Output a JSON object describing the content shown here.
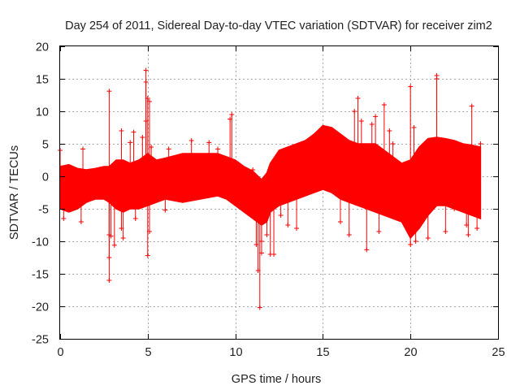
{
  "chart_data": {
    "type": "scatter",
    "title": "Day 254 of 2011, Sidereal Day-to-day VTEC variation (SDTVAR) for receiver zim2",
    "xlabel": "GPS time / hours",
    "ylabel": "SDTVAR / TECUs",
    "xlim": [
      0,
      25
    ],
    "ylim": [
      -25,
      20
    ],
    "xticks": [
      0,
      5,
      10,
      15,
      20,
      25
    ],
    "yticks": [
      -25,
      -20,
      -15,
      -10,
      -5,
      0,
      5,
      10,
      15,
      20
    ],
    "grid": true,
    "marker": "+",
    "color": "#ff0000",
    "series": [
      {
        "name": "SDTVAR",
        "envelope": {
          "x": [
            0.0,
            0.5,
            1.0,
            1.5,
            2.0,
            2.5,
            2.8,
            3.2,
            3.6,
            4.0,
            4.5,
            5.0,
            5.5,
            6.0,
            7.0,
            8.0,
            9.0,
            9.5,
            10.0,
            10.5,
            11.0,
            11.5,
            11.8,
            12.0,
            12.5,
            13.0,
            13.5,
            14.0,
            14.5,
            15.0,
            15.5,
            16.0,
            16.5,
            17.0,
            17.5,
            18.0,
            18.5,
            19.0,
            19.5,
            20.0,
            20.5,
            21.0,
            21.5,
            22.0,
            22.5,
            23.0,
            23.5,
            24.0
          ],
          "upper": [
            1.5,
            1.8,
            1.2,
            1.0,
            1.2,
            1.5,
            1.5,
            2.5,
            2.5,
            2.0,
            2.5,
            3.5,
            2.5,
            2.8,
            3.5,
            3.5,
            3.5,
            3.0,
            2.5,
            1.5,
            0.8,
            -0.5,
            0.5,
            2.0,
            4.0,
            4.5,
            5.0,
            5.5,
            6.5,
            7.8,
            7.5,
            6.5,
            5.5,
            5.0,
            5.0,
            5.0,
            4.0,
            3.0,
            2.0,
            2.5,
            4.5,
            5.8,
            6.0,
            5.8,
            5.5,
            5.0,
            4.8,
            4.5
          ],
          "lower": [
            -5.0,
            -5.5,
            -5.0,
            -4.0,
            -3.5,
            -3.5,
            -4.0,
            -5.0,
            -5.5,
            -5.0,
            -5.0,
            -4.5,
            -4.0,
            -3.5,
            -4.0,
            -3.5,
            -3.0,
            -3.5,
            -4.5,
            -5.5,
            -6.5,
            -7.5,
            -7.0,
            -5.5,
            -4.5,
            -4.0,
            -3.5,
            -3.0,
            -2.5,
            -2.0,
            -2.5,
            -3.5,
            -4.0,
            -4.5,
            -5.0,
            -5.5,
            -6.0,
            -6.5,
            -7.0,
            -9.5,
            -8.0,
            -6.0,
            -4.5,
            -4.5,
            -5.0,
            -5.5,
            -6.0,
            -6.5
          ]
        },
        "points": [
          {
            "x": 0.0,
            "y": 4.0
          },
          {
            "x": 0.2,
            "y": -6.5
          },
          {
            "x": 0.3,
            "y": -1.0
          },
          {
            "x": 1.3,
            "y": 4.2
          },
          {
            "x": 1.2,
            "y": -7.0
          },
          {
            "x": 2.8,
            "y": 13.1
          },
          {
            "x": 2.8,
            "y": -9.0
          },
          {
            "x": 2.9,
            "y": -9.2
          },
          {
            "x": 2.8,
            "y": -12.5
          },
          {
            "x": 2.8,
            "y": -16.0
          },
          {
            "x": 3.1,
            "y": -10.6
          },
          {
            "x": 3.5,
            "y": 7.0
          },
          {
            "x": 3.5,
            "y": -8.0
          },
          {
            "x": 3.6,
            "y": -9.5
          },
          {
            "x": 4.0,
            "y": 5.2
          },
          {
            "x": 4.2,
            "y": 6.8
          },
          {
            "x": 4.3,
            "y": -6.5
          },
          {
            "x": 4.9,
            "y": 16.3
          },
          {
            "x": 4.9,
            "y": 14.5
          },
          {
            "x": 5.0,
            "y": 12.0
          },
          {
            "x": 5.1,
            "y": 11.5
          },
          {
            "x": 5.0,
            "y": -12.2
          },
          {
            "x": 5.1,
            "y": -8.5
          },
          {
            "x": 4.9,
            "y": 8.5
          },
          {
            "x": 4.7,
            "y": 6.0
          },
          {
            "x": 5.2,
            "y": 4.5
          },
          {
            "x": 6.0,
            "y": -5.2
          },
          {
            "x": 6.2,
            "y": 4.2
          },
          {
            "x": 7.5,
            "y": 5.5
          },
          {
            "x": 8.5,
            "y": 5.2
          },
          {
            "x": 9.0,
            "y": 4.2
          },
          {
            "x": 9.7,
            "y": 8.8
          },
          {
            "x": 9.8,
            "y": 9.5
          },
          {
            "x": 10.0,
            "y": 2.0
          },
          {
            "x": 11.0,
            "y": 1.0
          },
          {
            "x": 11.2,
            "y": -10.5
          },
          {
            "x": 11.3,
            "y": -14.5
          },
          {
            "x": 11.4,
            "y": -20.2
          },
          {
            "x": 11.5,
            "y": -11.8
          },
          {
            "x": 11.5,
            "y": -10.0
          },
          {
            "x": 11.8,
            "y": -9.0
          },
          {
            "x": 12.0,
            "y": -12.0
          },
          {
            "x": 12.2,
            "y": -12.0
          },
          {
            "x": 12.6,
            "y": -6.0
          },
          {
            "x": 13.0,
            "y": -7.5
          },
          {
            "x": 13.5,
            "y": -8.0
          },
          {
            "x": 16.0,
            "y": -7.0
          },
          {
            "x": 16.5,
            "y": -9.0
          },
          {
            "x": 16.8,
            "y": 10.0
          },
          {
            "x": 17.0,
            "y": 12.0
          },
          {
            "x": 17.2,
            "y": 8.5
          },
          {
            "x": 17.5,
            "y": -11.3
          },
          {
            "x": 17.8,
            "y": 8.0
          },
          {
            "x": 18.0,
            "y": 9.2
          },
          {
            "x": 18.2,
            "y": -8.5
          },
          {
            "x": 18.5,
            "y": 11.0
          },
          {
            "x": 18.8,
            "y": 7.0
          },
          {
            "x": 19.0,
            "y": 5.0
          },
          {
            "x": 19.5,
            "y": -6.5
          },
          {
            "x": 20.0,
            "y": 13.8
          },
          {
            "x": 20.2,
            "y": 7.5
          },
          {
            "x": 20.0,
            "y": -10.5
          },
          {
            "x": 20.3,
            "y": -10.0
          },
          {
            "x": 21.0,
            "y": -9.5
          },
          {
            "x": 21.5,
            "y": 15.5
          },
          {
            "x": 21.5,
            "y": 15.0
          },
          {
            "x": 22.0,
            "y": -8.5
          },
          {
            "x": 22.5,
            "y": -5.0
          },
          {
            "x": 23.2,
            "y": -7.5
          },
          {
            "x": 23.3,
            "y": -9.0
          },
          {
            "x": 23.5,
            "y": 10.8
          },
          {
            "x": 23.8,
            "y": -8.0
          },
          {
            "x": 24.0,
            "y": 5.0
          }
        ]
      }
    ]
  }
}
